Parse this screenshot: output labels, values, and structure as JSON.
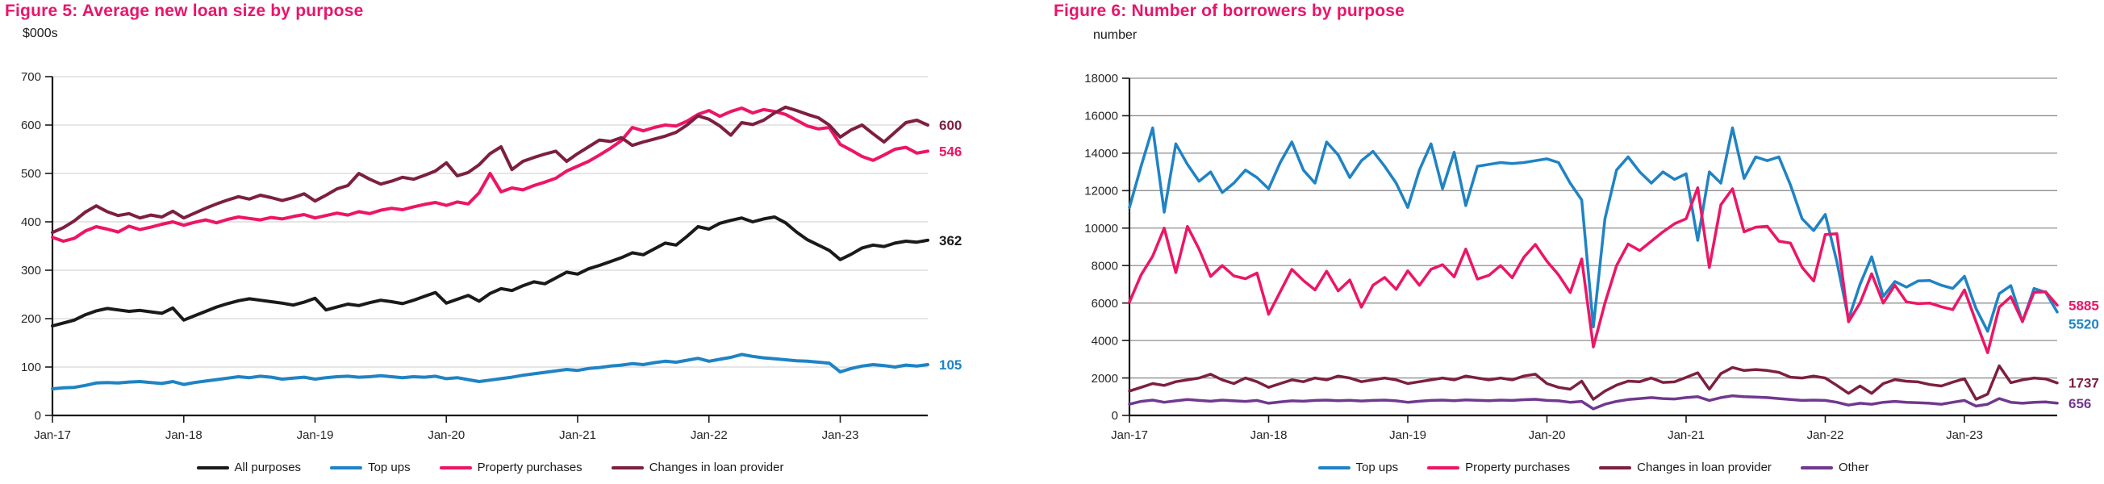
{
  "colors": {
    "title": "#e8156a",
    "axis": "#1a1a1a",
    "tick_label": "#262626",
    "legend_text": "#1a1a1a"
  },
  "chart_data": [
    {
      "id": "figure5",
      "type": "line",
      "title": "Figure 5: Average new loan size by purpose",
      "unit_label": "$000s",
      "ylim": [
        0,
        700
      ],
      "y_tick_step": 100,
      "y_tick_labels": [
        "0",
        "100",
        "200",
        "300",
        "400",
        "500",
        "600",
        "700"
      ],
      "x_tick_labels": [
        "Jan-17",
        "Jan-18",
        "Jan-19",
        "Jan-20",
        "Jan-21",
        "Jan-22",
        "Jan-23"
      ],
      "x_tick_months": [
        0,
        12,
        24,
        36,
        48,
        60,
        72
      ],
      "x_start": "Jan-17",
      "x_end": "Sep-23",
      "grid": true,
      "grid_color": "#d6d6d6",
      "legend_position": "bottom",
      "series": [
        {
          "name": "All purposes",
          "color": "#1a1a1a",
          "end_label": "362",
          "values": [
            185,
            191,
            197,
            208,
            216,
            221,
            218,
            215,
            217,
            214,
            211,
            222,
            197,
            206,
            215,
            224,
            231,
            237,
            241,
            238,
            235,
            232,
            228,
            234,
            242,
            218,
            224,
            230,
            227,
            233,
            238,
            235,
            231,
            238,
            246,
            254,
            232,
            240,
            248,
            236,
            252,
            262,
            258,
            268,
            276,
            272,
            284,
            296,
            292,
            303,
            310,
            318,
            326,
            336,
            332,
            344,
            356,
            352,
            370,
            390,
            385,
            397,
            403,
            408,
            400,
            406,
            410,
            398,
            379,
            363,
            352,
            341,
            322,
            333,
            346,
            352,
            349,
            356,
            360,
            358,
            362
          ]
        },
        {
          "name": "Top ups",
          "color": "#1f83c4",
          "end_label": "105",
          "values": [
            55,
            57,
            58,
            62,
            67,
            68,
            67,
            69,
            70,
            68,
            66,
            70,
            64,
            68,
            71,
            74,
            77,
            80,
            78,
            81,
            79,
            75,
            77,
            79,
            75,
            78,
            80,
            81,
            79,
            80,
            82,
            80,
            78,
            80,
            79,
            81,
            76,
            78,
            74,
            70,
            73,
            76,
            79,
            83,
            86,
            89,
            92,
            95,
            93,
            97,
            99,
            102,
            104,
            107,
            105,
            109,
            112,
            110,
            114,
            118,
            112,
            116,
            120,
            126,
            122,
            119,
            117,
            115,
            113,
            112,
            110,
            108,
            90,
            97,
            102,
            105,
            103,
            100,
            104,
            102,
            105
          ]
        },
        {
          "name": "Property purchases",
          "color": "#ed1566",
          "end_label": "546",
          "values": [
            368,
            360,
            366,
            381,
            390,
            385,
            379,
            391,
            384,
            389,
            395,
            400,
            393,
            399,
            404,
            398,
            405,
            410,
            407,
            404,
            409,
            406,
            411,
            415,
            408,
            413,
            418,
            414,
            421,
            417,
            424,
            428,
            425,
            431,
            436,
            440,
            434,
            441,
            437,
            460,
            500,
            462,
            470,
            466,
            475,
            482,
            490,
            505,
            515,
            525,
            538,
            552,
            568,
            595,
            588,
            595,
            600,
            598,
            608,
            622,
            630,
            618,
            628,
            635,
            625,
            632,
            628,
            622,
            610,
            598,
            592,
            595,
            560,
            548,
            535,
            527,
            538,
            550,
            554,
            542,
            546
          ]
        },
        {
          "name": "Changes in loan provider",
          "color": "#7d1f41",
          "end_label": "600",
          "values": [
            378,
            388,
            402,
            420,
            433,
            421,
            413,
            417,
            408,
            414,
            410,
            422,
            408,
            418,
            428,
            437,
            445,
            452,
            447,
            455,
            450,
            444,
            450,
            458,
            443,
            455,
            468,
            475,
            500,
            488,
            478,
            484,
            492,
            488,
            496,
            505,
            522,
            495,
            502,
            518,
            541,
            555,
            508,
            525,
            533,
            540,
            546,
            525,
            541,
            555,
            569,
            566,
            574,
            558,
            565,
            571,
            577,
            585,
            600,
            619,
            612,
            598,
            579,
            605,
            601,
            610,
            625,
            637,
            630,
            622,
            615,
            600,
            575,
            590,
            600,
            582,
            565,
            585,
            605,
            610,
            600
          ]
        }
      ]
    },
    {
      "id": "figure6",
      "type": "line",
      "title": "Figure 6:  Number of borrowers by purpose",
      "unit_label": "number",
      "ylim": [
        0,
        18000
      ],
      "y_tick_step": 2000,
      "y_tick_labels": [
        "0",
        "2000",
        "4000",
        "6000",
        "8000",
        "10000",
        "12000",
        "14000",
        "16000",
        "18000"
      ],
      "x_tick_labels": [
        "Jan-17",
        "Jan-18",
        "Jan-19",
        "Jan-20",
        "Jan-21",
        "Jan-22",
        "Jan-23"
      ],
      "x_tick_months": [
        0,
        12,
        24,
        36,
        48,
        60,
        72
      ],
      "x_start": "Jan-17",
      "x_end": "Sep-23",
      "grid": true,
      "grid_color": "#8f8f8f",
      "legend_position": "bottom",
      "series": [
        {
          "name": "Top ups",
          "color": "#1f83c4",
          "end_label": "5520",
          "values": [
            11100,
            13300,
            15350,
            10850,
            14500,
            13400,
            12500,
            13000,
            11900,
            12400,
            13100,
            12700,
            12100,
            13500,
            14600,
            13100,
            12400,
            14600,
            13900,
            12700,
            13600,
            14100,
            13300,
            12400,
            11100,
            13100,
            14500,
            12100,
            14050,
            11200,
            13300,
            13400,
            13500,
            13450,
            13500,
            13600,
            13700,
            13500,
            12400,
            11500,
            4730,
            10500,
            13100,
            13800,
            13000,
            12400,
            13000,
            12600,
            12900,
            9350,
            13000,
            12400,
            15350,
            12650,
            13800,
            13600,
            13800,
            12300,
            10500,
            9870,
            10730,
            8200,
            5140,
            7000,
            8470,
            6350,
            7150,
            6850,
            7180,
            7200,
            6950,
            6780,
            7430,
            5700,
            4490,
            6500,
            6930,
            5000,
            6780,
            6570,
            5520
          ]
        },
        {
          "name": "Property purchases",
          "color": "#ed1566",
          "end_label": "5885",
          "values": [
            6050,
            7500,
            8500,
            10000,
            7630,
            10090,
            8880,
            7420,
            8000,
            7450,
            7300,
            7600,
            5400,
            6600,
            7800,
            7200,
            6700,
            7700,
            6650,
            7230,
            5780,
            6950,
            7370,
            6730,
            7720,
            6950,
            7800,
            8050,
            7400,
            8880,
            7280,
            7480,
            8000,
            7350,
            8440,
            9130,
            8230,
            7500,
            6560,
            8350,
            3655,
            6000,
            8000,
            9150,
            8800,
            9300,
            9800,
            10230,
            10500,
            12150,
            7900,
            11250,
            12100,
            9800,
            10050,
            10100,
            9300,
            9200,
            7900,
            7180,
            9660,
            9700,
            5000,
            6000,
            7560,
            6000,
            6950,
            6060,
            5970,
            6000,
            5800,
            5650,
            6700,
            5000,
            3350,
            5780,
            6340,
            5020,
            6570,
            6600,
            5885
          ]
        },
        {
          "name": "Changes in loan provider",
          "color": "#7d1f41",
          "end_label": "1737",
          "values": [
            1300,
            1500,
            1700,
            1600,
            1800,
            1900,
            2000,
            2200,
            1900,
            1700,
            2000,
            1800,
            1500,
            1700,
            1900,
            1800,
            2000,
            1900,
            2100,
            2000,
            1800,
            1900,
            2000,
            1900,
            1700,
            1800,
            1900,
            2000,
            1900,
            2100,
            2000,
            1900,
            2000,
            1900,
            2100,
            2200,
            1700,
            1500,
            1400,
            1830,
            860,
            1300,
            1620,
            1830,
            1800,
            2000,
            1760,
            1790,
            2030,
            2280,
            1400,
            2230,
            2560,
            2400,
            2450,
            2400,
            2300,
            2040,
            2000,
            2100,
            2000,
            1600,
            1180,
            1570,
            1180,
            1700,
            1910,
            1825,
            1790,
            1650,
            1570,
            1780,
            1960,
            860,
            1140,
            2650,
            1750,
            1900,
            2000,
            1950,
            1737
          ]
        },
        {
          "name": "Other",
          "color": "#71388f",
          "end_label": "656",
          "values": [
            600,
            750,
            820,
            700,
            780,
            850,
            800,
            760,
            820,
            780,
            750,
            800,
            650,
            720,
            780,
            760,
            800,
            820,
            790,
            810,
            770,
            800,
            820,
            780,
            700,
            760,
            800,
            820,
            790,
            830,
            810,
            790,
            820,
            800,
            840,
            860,
            800,
            780,
            700,
            750,
            350,
            600,
            750,
            850,
            900,
            950,
            900,
            880,
            950,
            1000,
            800,
            950,
            1050,
            1000,
            980,
            950,
            900,
            850,
            800,
            820,
            800,
            700,
            550,
            650,
            600,
            700,
            750,
            700,
            680,
            650,
            600,
            700,
            800,
            500,
            600,
            900,
            700,
            650,
            700,
            720,
            656
          ]
        }
      ]
    }
  ]
}
